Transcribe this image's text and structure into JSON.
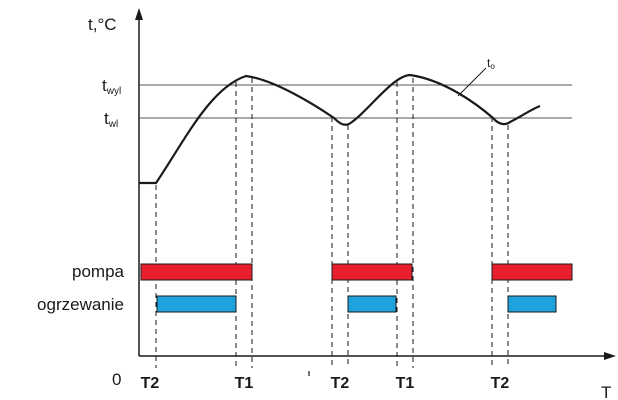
{
  "axes": {
    "y_label": "t,°C",
    "x_label": "T",
    "origin": "0"
  },
  "levels": {
    "twyl": {
      "main": "t",
      "sub": "wyl"
    },
    "twl": {
      "main": "t",
      "sub": "wl"
    }
  },
  "curve_label": {
    "main": "t",
    "sub": "o"
  },
  "rows": {
    "pump_label": "pompa",
    "heating_label": "ogrzewanie"
  },
  "time_markers": [
    "T2",
    "T1",
    "T2",
    "T1",
    "T2"
  ],
  "colors": {
    "pump": "#e8202b",
    "heating": "#1fa3dc",
    "line": "#1a1a1a",
    "level_line": "#555555"
  }
}
